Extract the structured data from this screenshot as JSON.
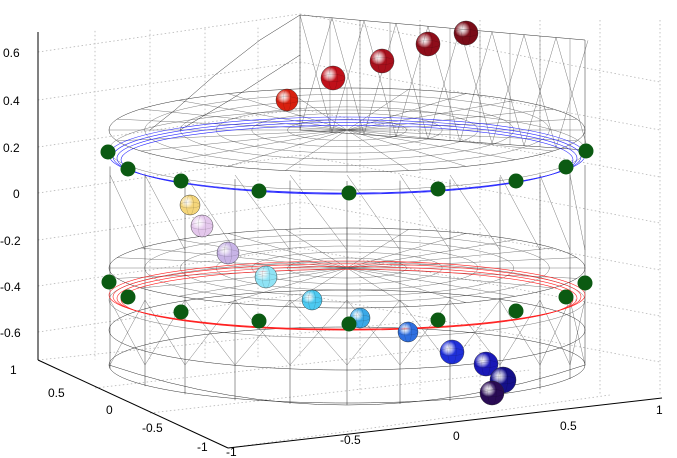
{
  "figure": {
    "z_ticks": [
      "0.6",
      "0.4",
      "0.2",
      "0",
      "-0.2",
      "-0.4",
      "-0.6"
    ],
    "y_ticks": [
      "1",
      "0.5",
      "0",
      "-0.5",
      "-1"
    ],
    "x_ticks": [
      "-1",
      "-0.5",
      "0",
      "0.5",
      "1"
    ],
    "colors": {
      "marker_green": "#0b5a12",
      "mesh": "#1a1a1a",
      "upper_ring": "#2b2bff",
      "lower_ring": "#ff1f1f",
      "grid": "#b5b5b5"
    },
    "sphere_colors": [
      "#d8200f",
      "#c0101a",
      "#a8101c",
      "#8e0d1a",
      "#7a0c18",
      "#f4d57a",
      "#e4c7ec",
      "#c8b4e6",
      "#8fe3f5",
      "#4cc9f0",
      "#3aa8e6",
      "#2f6fe0",
      "#1f2fd8",
      "#1a18b8",
      "#15108a",
      "#2a0b55"
    ]
  }
}
